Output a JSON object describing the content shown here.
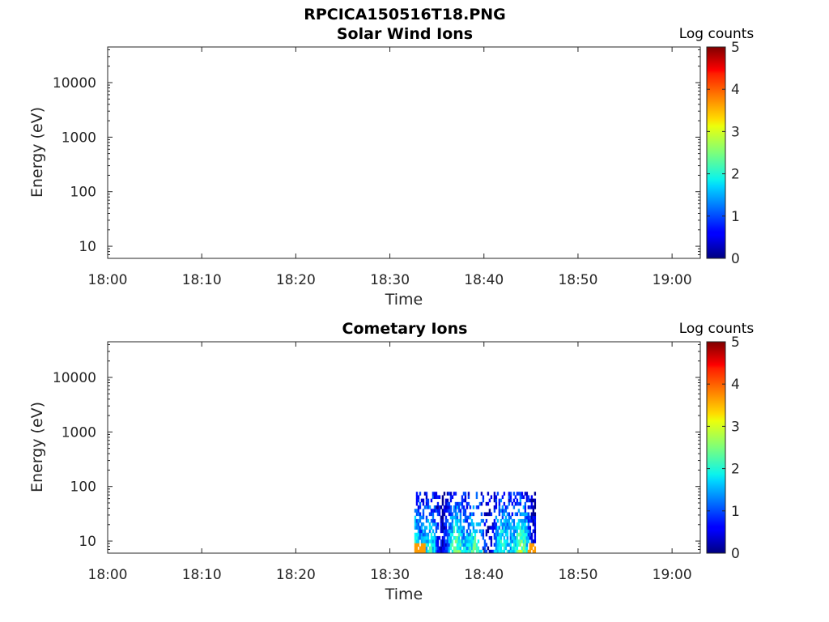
{
  "figure_title": "RPCICA150516T18.PNG",
  "chart_data": [
    {
      "type": "heatmap",
      "title": "Solar Wind Ions",
      "xlabel": "Time",
      "ylabel": "Energy (eV)",
      "x_tick_labels": [
        "18:00",
        "18:10",
        "18:20",
        "18:30",
        "18:40",
        "18:50",
        "19:00"
      ],
      "x_range_minutes": [
        0,
        63
      ],
      "y_scale": "log",
      "y_tick_values": [
        10,
        100,
        1000,
        10000
      ],
      "y_tick_labels": [
        "10",
        "100",
        "1000",
        "10000"
      ],
      "y_range": [
        6,
        45000
      ],
      "colorbar": {
        "label": "Log counts",
        "range": [
          0,
          5
        ],
        "tick_labels": [
          "0",
          "1",
          "2",
          "3",
          "4",
          "5"
        ],
        "colormap": "jet"
      },
      "data": [],
      "grid": false
    },
    {
      "type": "heatmap",
      "title": "Cometary Ions",
      "xlabel": "Time",
      "ylabel": "Energy (eV)",
      "x_tick_labels": [
        "18:00",
        "18:10",
        "18:20",
        "18:30",
        "18:40",
        "18:50",
        "19:00"
      ],
      "x_range_minutes": [
        0,
        63
      ],
      "y_scale": "log",
      "y_tick_values": [
        10,
        100,
        1000,
        10000
      ],
      "y_tick_labels": [
        "10",
        "100",
        "1000",
        "10000"
      ],
      "y_range": [
        6,
        45000
      ],
      "colorbar": {
        "label": "Log counts",
        "range": [
          0,
          5
        ],
        "tick_labels": [
          "0",
          "1",
          "2",
          "3",
          "4",
          "5"
        ],
        "colormap": "jet"
      },
      "data_time_range_minutes": [
        32.6,
        45.5
      ],
      "data_energy_range_ev": [
        6,
        80
      ],
      "data_log_counts_range": [
        0,
        3.8
      ],
      "grid": false
    }
  ]
}
